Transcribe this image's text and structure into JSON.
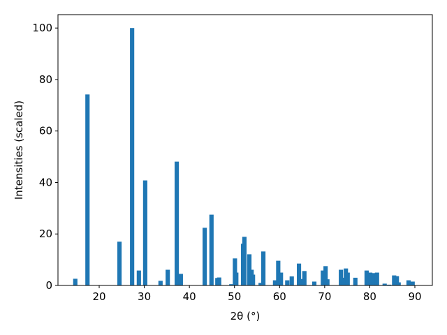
{
  "chart_data": {
    "type": "bar",
    "xlabel": "2θ (°)",
    "ylabel": "Intensities (scaled)",
    "color": "#1f77b4",
    "x": [
      14.7,
      17.4,
      24.5,
      27.3,
      28.8,
      30.2,
      33.6,
      35.2,
      37.2,
      38.1,
      43.4,
      44.9,
      46.2,
      46.6,
      49.3,
      50.1,
      50.4,
      51.9,
      52.2,
      53.3,
      53.8,
      54.1,
      55.8,
      56.4,
      59.0,
      59.7,
      60.3,
      61.7,
      62.7,
      64.3,
      64.9,
      65.5,
      67.7,
      69.6,
      70.2,
      70.6,
      73.6,
      74.2,
      74.7,
      75.1,
      76.8,
      79.3,
      80.1,
      80.9,
      81.6,
      83.3,
      84.3,
      85.4,
      86.0,
      86.4,
      88.6,
      89.5
    ],
    "values": [
      2.6,
      74.2,
      17,
      100,
      5.8,
      40.8,
      1.8,
      6.1,
      48.1,
      4.5,
      22.4,
      27.5,
      2.9,
      3.1,
      0.5,
      10.5,
      5,
      16.2,
      18.9,
      12.1,
      6.1,
      4.2,
      1,
      13.2,
      2,
      9.6,
      5,
      2,
      3.5,
      8.5,
      2.5,
      5.6,
      1.5,
      5.8,
      7.5,
      2.4,
      6.1,
      3,
      6.6,
      5,
      3,
      5.8,
      5,
      4.8,
      5,
      0.7,
      0.3,
      3.9,
      3.6,
      1.2,
      2,
      1.5
    ],
    "xlim": [
      10.86,
      93.87
    ],
    "xticks": [
      20,
      30,
      40,
      50,
      60,
      70,
      80,
      90
    ],
    "ylim": [
      0,
      105.2
    ],
    "yticks": [
      0,
      20,
      40,
      60,
      80,
      100
    ]
  }
}
